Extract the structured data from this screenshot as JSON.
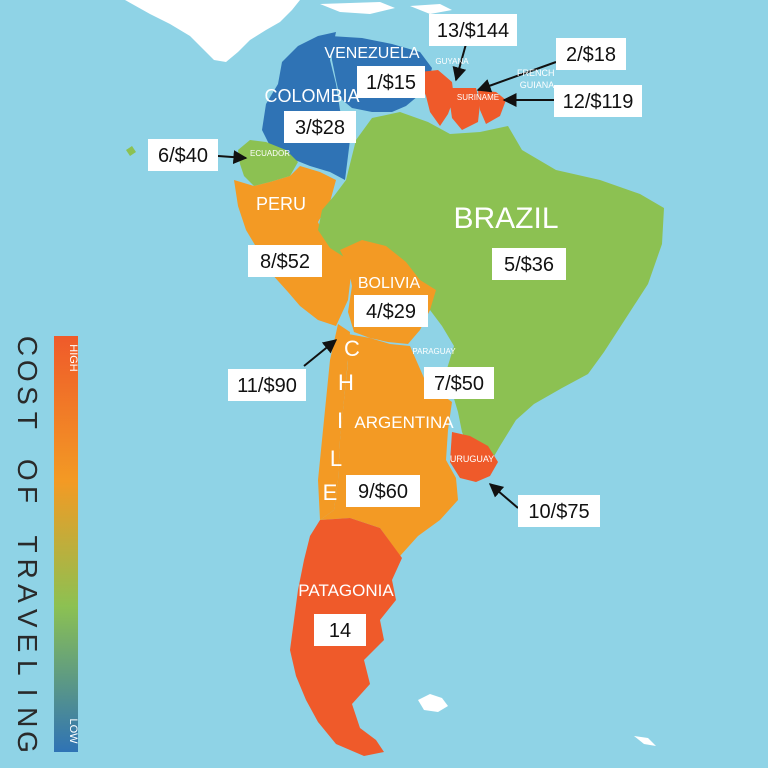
{
  "colors": {
    "ocean": "#8fd3e6",
    "low": "#2f73b5",
    "mid_low": "#8cc152",
    "mid": "#f39a24",
    "high": "#ef5a2a",
    "other_land": "#ffffff"
  },
  "legend": {
    "title_letters": [
      "C",
      "O",
      "S",
      "T",
      "",
      "O",
      "F",
      "",
      "T",
      "R",
      "A",
      "V",
      "E",
      "L",
      "I",
      "N",
      "G"
    ],
    "high_label": "HIGH",
    "low_label": "LOW"
  },
  "countries": [
    {
      "key": "venezuela",
      "name": "VENEZUELA",
      "rank_label": "1/$15",
      "tier": "low"
    },
    {
      "key": "colombia",
      "name": "COLOMBIA",
      "rank_label": "3/$28",
      "tier": "low"
    },
    {
      "key": "guyana",
      "name": "GUYANA",
      "rank_label": "13/$144",
      "tier": "high"
    },
    {
      "key": "suriname",
      "name": "SURINAME",
      "rank_label": "2/$18",
      "tier": "low"
    },
    {
      "key": "french_guiana",
      "name": "FRENCH\nGUIANA",
      "rank_label": "12/$119",
      "tier": "high"
    },
    {
      "key": "ecuador",
      "name": "ECUADOR",
      "rank_label": "6/$40",
      "tier": "mid_low"
    },
    {
      "key": "peru",
      "name": "PERU",
      "rank_label": "8/$52",
      "tier": "mid"
    },
    {
      "key": "brazil",
      "name": "BRAZIL",
      "rank_label": "5/$36",
      "tier": "mid_low"
    },
    {
      "key": "bolivia",
      "name": "BOLIVIA",
      "rank_label": "4/$29",
      "tier": "mid"
    },
    {
      "key": "paraguay",
      "name": "PARAGUAY",
      "rank_label": "7/$50",
      "tier": "mid_low"
    },
    {
      "key": "chile",
      "name": "CHILE",
      "rank_label": "11/$90",
      "tier": "mid"
    },
    {
      "key": "argentina",
      "name": "ARGENTINA",
      "rank_label": "9/$60",
      "tier": "mid"
    },
    {
      "key": "uruguay",
      "name": "URUGUAY",
      "rank_label": "10/$75",
      "tier": "high"
    },
    {
      "key": "patagonia",
      "name": "PATAGONIA",
      "rank_label": "14",
      "tier": "high"
    }
  ]
}
